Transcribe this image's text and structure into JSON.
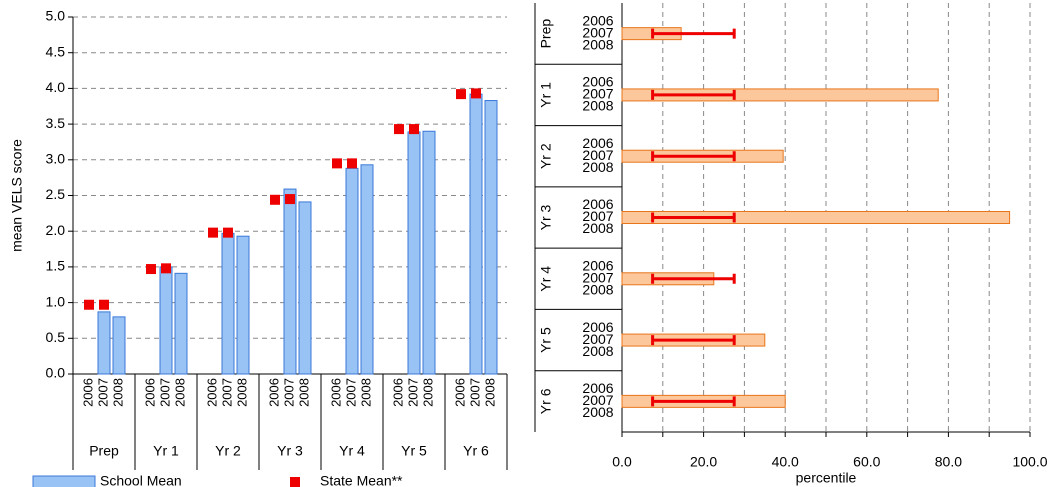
{
  "chart_data": [
    {
      "type": "grouped_bar",
      "ylabel": "mean VELS score",
      "categories": [
        "Prep",
        "Yr 1",
        "Yr 2",
        "Yr 3",
        "Yr 4",
        "Yr 5",
        "Yr 6"
      ],
      "subcategories": [
        "2006",
        "2007",
        "2008"
      ],
      "series": [
        {
          "name": "School Mean",
          "color": "#99c2f5",
          "kind": "bar",
          "values": [
            [
              null,
              0.87,
              0.8
            ],
            [
              null,
              1.5,
              1.41
            ],
            [
              null,
              1.97,
              1.93
            ],
            [
              null,
              2.59,
              2.41
            ],
            [
              null,
              2.88,
              2.93
            ],
            [
              null,
              3.39,
              3.4
            ],
            [
              null,
              3.92,
              3.83
            ]
          ]
        },
        {
          "name": "State Mean**",
          "color": "#ee0000",
          "kind": "marker",
          "values": [
            [
              0.97,
              0.97,
              null
            ],
            [
              1.47,
              1.48,
              null
            ],
            [
              1.98,
              1.98,
              null
            ],
            [
              2.44,
              2.45,
              null
            ],
            [
              2.95,
              2.95,
              null
            ],
            [
              3.43,
              3.43,
              null
            ],
            [
              3.92,
              3.93,
              null
            ]
          ]
        }
      ],
      "ylim": [
        0,
        5
      ],
      "yticks": [
        {
          "value": 0,
          "label": "0.0"
        },
        {
          "value": 0.5,
          "label": "0.5"
        },
        {
          "value": 1,
          "label": "1.0"
        },
        {
          "value": 1.5,
          "label": "1.5"
        },
        {
          "value": 2,
          "label": "2.0"
        },
        {
          "value": 2.5,
          "label": "2.5"
        },
        {
          "value": 3,
          "label": "3.0"
        },
        {
          "value": 3.5,
          "label": "3.5"
        },
        {
          "value": 4,
          "label": "4.0"
        },
        {
          "value": 4.5,
          "label": "4.5"
        },
        {
          "value": 5,
          "label": "5.0"
        }
      ],
      "grid": true
    },
    {
      "type": "hbar_error",
      "xlabel": "percentile",
      "categories": [
        "Prep",
        "Yr 1",
        "Yr 2",
        "Yr 3",
        "Yr 4",
        "Yr 5",
        "Yr 6"
      ],
      "subcategories": [
        "2006",
        "2007",
        "2008"
      ],
      "values": [
        14.5,
        77.5,
        39.5,
        95,
        22.5,
        35,
        40
      ],
      "error_center": [
        17.5,
        17.5,
        17.5,
        17.5,
        17.5,
        17.5,
        17.5
      ],
      "error": [
        10,
        10,
        10,
        10,
        10,
        10,
        10
      ],
      "color": "#fcc89b",
      "edge_color": "#e8751a",
      "error_color": "#ee0000",
      "xlim": [
        0,
        100
      ],
      "xticks": [
        {
          "value": 0,
          "label": "0.0"
        },
        {
          "value": 10,
          "label": ""
        },
        {
          "value": 20,
          "label": "20.0"
        },
        {
          "value": 30,
          "label": ""
        },
        {
          "value": 40,
          "label": "40.0"
        },
        {
          "value": 50,
          "label": ""
        },
        {
          "value": 60,
          "label": "60.0"
        },
        {
          "value": 70,
          "label": ""
        },
        {
          "value": 80,
          "label": "80.0"
        },
        {
          "value": 90,
          "label": ""
        },
        {
          "value": 100,
          "label": "100.0"
        }
      ],
      "grid": true
    }
  ]
}
